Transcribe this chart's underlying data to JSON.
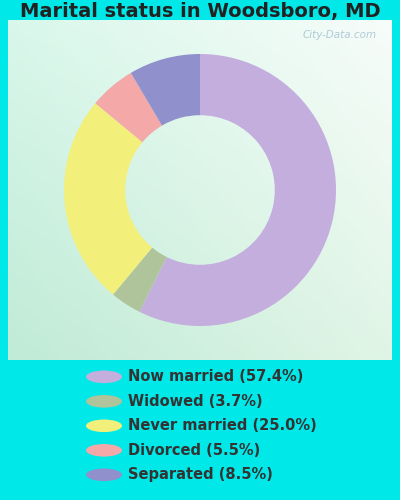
{
  "title": "Marital status in Woodsboro, MD",
  "slices": [
    57.4,
    3.7,
    25.0,
    5.5,
    8.5
  ],
  "labels": [
    "Now married (57.4%)",
    "Widowed (3.7%)",
    "Never married (25.0%)",
    "Divorced (5.5%)",
    "Separated (8.5%)"
  ],
  "colors": [
    "#c4aedd",
    "#afc49a",
    "#f2f07a",
    "#f4a8a8",
    "#9090cc"
  ],
  "bg_outer": "#00e8e8",
  "bg_chart_color1": "#f0f8f4",
  "bg_chart_color2": "#c8ead8",
  "watermark": "City-Data.com",
  "donut_width": 0.45,
  "start_angle": 90,
  "title_color": "#222222",
  "label_color": "#333333",
  "title_fontsize": 14,
  "legend_fontsize": 10.5
}
